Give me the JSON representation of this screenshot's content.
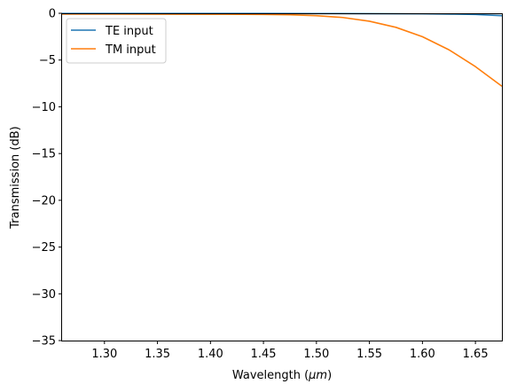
{
  "chart_data": {
    "type": "line",
    "title": "",
    "xlabel": "Wavelength ($\\mu m$)",
    "xlabel_parts": {
      "before": "Wavelength (",
      "math": "μm",
      "after": ")"
    },
    "ylabel": "Transmission (dB)",
    "xlim": [
      1.26,
      1.675
    ],
    "ylim": [
      -35,
      0
    ],
    "xticks": [
      1.3,
      1.35,
      1.4,
      1.45,
      1.5,
      1.55,
      1.6,
      1.65
    ],
    "xtick_labels": [
      "1.30",
      "1.35",
      "1.40",
      "1.45",
      "1.50",
      "1.55",
      "1.60",
      "1.65"
    ],
    "yticks": [
      0,
      -5,
      -10,
      -15,
      -20,
      -25,
      -30,
      -35
    ],
    "ytick_labels": [
      "0",
      "−5",
      "−10",
      "−15",
      "−20",
      "−25",
      "−30",
      "−35"
    ],
    "grid": false,
    "legend_position": "upper-left",
    "series": [
      {
        "name": "TE input",
        "color": "#1f77b4",
        "x": [
          1.26,
          1.3,
          1.35,
          1.4,
          1.45,
          1.5,
          1.55,
          1.6,
          1.63,
          1.65,
          1.675
        ],
        "values": [
          -0.02,
          -0.02,
          -0.02,
          -0.02,
          -0.02,
          -0.03,
          -0.04,
          -0.06,
          -0.09,
          -0.13,
          -0.25
        ]
      },
      {
        "name": "TM input",
        "color": "#ff7f0e",
        "x": [
          1.26,
          1.3,
          1.35,
          1.4,
          1.45,
          1.475,
          1.5,
          1.525,
          1.55,
          1.575,
          1.6,
          1.625,
          1.65,
          1.675
        ],
        "values": [
          -0.08,
          -0.08,
          -0.09,
          -0.1,
          -0.12,
          -0.16,
          -0.25,
          -0.45,
          -0.85,
          -1.5,
          -2.5,
          -3.9,
          -5.7,
          -7.8
        ]
      }
    ]
  }
}
